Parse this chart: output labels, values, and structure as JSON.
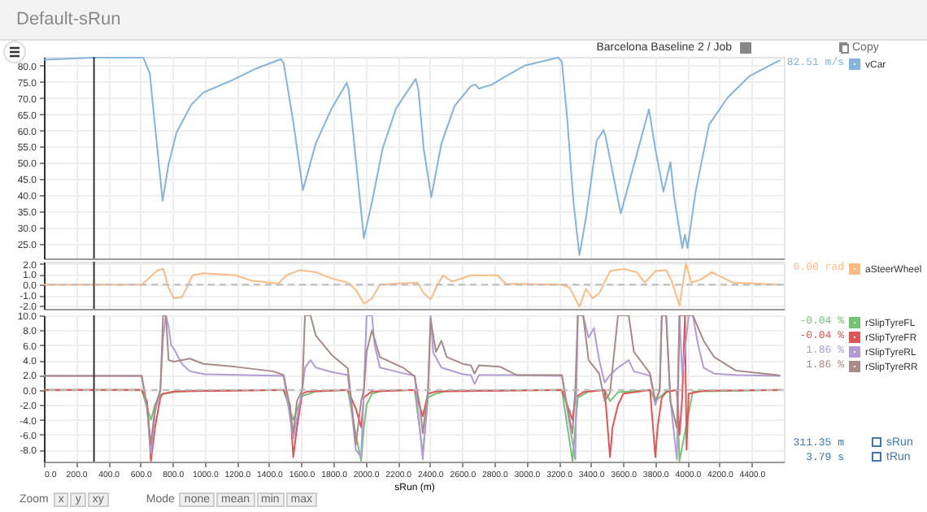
{
  "chart_data": [
    {
      "type": "line",
      "subtitle": "Default-sRun",
      "legend_title": "Barcelona Baseline 2 / Job",
      "xlim": [
        0,
        4600
      ],
      "xticks": [
        0,
        200,
        400,
        600,
        800,
        1000,
        1200,
        1400,
        1600,
        1800,
        2000,
        2200,
        2400,
        2600,
        2800,
        3000,
        3200,
        3400,
        3600,
        3800,
        4000,
        4200,
        4400
      ],
      "ylim": [
        20.5,
        82.7
      ],
      "yticks": [
        {
          "value": 25,
          "label": "25.0"
        },
        {
          "value": 30,
          "label": "30.0"
        },
        {
          "value": 35,
          "label": "35.0"
        },
        {
          "value": 40,
          "label": "40.0"
        },
        {
          "value": 45,
          "label": "45.0"
        },
        {
          "value": 50,
          "label": "50.0"
        },
        {
          "value": 55,
          "label": "55.0"
        },
        {
          "value": 60,
          "label": "60.0"
        },
        {
          "value": 65,
          "label": "65.0"
        },
        {
          "value": 70,
          "label": "70.0"
        },
        {
          "value": 75,
          "label": "75.0"
        },
        {
          "value": 80,
          "label": "80.0"
        }
      ],
      "tick_labels": "y",
      "grid": true,
      "legend": "top right",
      "ref_lines": [
        {
          "axis": "x",
          "value": 311.35,
          "color": "#333333"
        }
      ],
      "annotations": [
        "82.51 m/s",
        "Copy"
      ],
      "series": [
        {
          "name": "vCar",
          "color": "#82b4dc",
          "x": [
            0,
            325,
            618,
            658,
            698,
            738,
            774,
            824,
            917,
            991,
            1174,
            1323,
            1473,
            1490,
            1550,
            1610,
            1690,
            1789,
            1882,
            1895,
            1939,
            1989,
            2039,
            2105,
            2189,
            2311,
            2328,
            2361,
            2408,
            2471,
            2554,
            2654,
            2681,
            2704,
            2787,
            2870,
            2987,
            3197,
            3220,
            3252,
            3292,
            3329,
            3369,
            3436,
            3479,
            3492,
            3586,
            3686,
            3761,
            3801,
            3851,
            3895,
            3918,
            3968,
            3985,
            4001,
            4051,
            4135,
            4250,
            4384,
            4577
          ],
          "values": [
            81.8,
            82.5,
            82.5,
            77.6,
            57.7,
            38.3,
            49.4,
            59.3,
            68.0,
            71.7,
            75.6,
            79.2,
            82.0,
            80.9,
            62.6,
            41.6,
            56.0,
            66.8,
            74.7,
            72.6,
            51.0,
            26.8,
            37.8,
            54.3,
            66.8,
            75.9,
            72.6,
            54.3,
            39.4,
            56.0,
            67.6,
            73.7,
            74.2,
            72.9,
            74.2,
            76.7,
            80.0,
            82.5,
            81.2,
            64.3,
            37.8,
            21.5,
            32.9,
            56.8,
            60.1,
            58.0,
            34.4,
            52.7,
            66.5,
            54.3,
            41.1,
            50.2,
            39.4,
            23.7,
            27.8,
            23.7,
            41.1,
            61.8,
            70.1,
            76.7,
            81.7
          ]
        }
      ]
    },
    {
      "type": "line",
      "xlim": [
        0,
        4600
      ],
      "xticks": [
        0,
        200,
        400,
        600,
        800,
        1000,
        1200,
        1400,
        1600,
        1800,
        2000,
        2200,
        2400,
        2600,
        2800,
        3000,
        3200,
        3400,
        3600,
        3800,
        4000,
        4200,
        4400
      ],
      "ylim": [
        -2.3,
        2.2
      ],
      "yticks": [
        {
          "value": -2,
          "label": "-2.0"
        },
        {
          "value": -1,
          "label": "-1.0"
        },
        {
          "value": 0,
          "label": "0.0"
        },
        {
          "value": 1,
          "label": "1.0"
        },
        {
          "value": 2,
          "label": "2.0"
        }
      ],
      "tick_labels": "y",
      "grid": true,
      "legend": "top right",
      "ref_lines": [
        {
          "axis": "x",
          "value": 311.35,
          "color": "#333333"
        },
        {
          "axis": "y",
          "value": 0,
          "color": "#bbbbbb",
          "line_style": "dashed"
        }
      ],
      "annotations": [
        "0.00 rad"
      ],
      "series": [
        {
          "name": "aSteerWheel",
          "color": "#fdbb84",
          "x": [
            0,
            325,
            608,
            658,
            708,
            742,
            775,
            808,
            858,
            924,
            991,
            1191,
            1290,
            1457,
            1507,
            1590,
            1690,
            1789,
            1889,
            1939,
            1989,
            2039,
            2089,
            2189,
            2322,
            2361,
            2404,
            2437,
            2481,
            2537,
            2654,
            2820,
            2870,
            3220,
            3269,
            3329,
            3369,
            3412,
            3452,
            3519,
            3602,
            3685,
            3735,
            3801,
            3868,
            3901,
            3951,
            3991,
            4024,
            4084,
            4151,
            4284,
            4577
          ],
          "values": [
            0,
            0,
            0,
            0.7,
            1.4,
            1.5,
            -0.3,
            -1.3,
            -1.2,
            0.9,
            1.1,
            0.9,
            0.4,
            0.1,
            0.9,
            1.4,
            1.2,
            0.6,
            0.2,
            -0.5,
            -1.8,
            -1.3,
            0,
            0.1,
            0.2,
            -0.8,
            -1.4,
            -0.3,
            0.9,
            0.3,
            0.9,
            0.9,
            0.1,
            0,
            -0.3,
            -2.1,
            -0.4,
            -1.3,
            -0.8,
            1.3,
            1.5,
            1.2,
            0.2,
            1.3,
            1.4,
            0.4,
            -2,
            2,
            0.2,
            0.5,
            1.2,
            0.2,
            0
          ]
        }
      ]
    },
    {
      "type": "line",
      "xlabel": "sRun (m)",
      "xlim": [
        0,
        4600
      ],
      "xticks": [
        {
          "value": 0,
          "label": "0.0"
        },
        {
          "value": 200,
          "label": "200.0"
        },
        {
          "value": 400,
          "label": "400.0"
        },
        {
          "value": 600,
          "label": "600.0"
        },
        {
          "value": 800,
          "label": "800.0"
        },
        {
          "value": 1000,
          "label": "1000.0"
        },
        {
          "value": 1200,
          "label": "1200.0"
        },
        {
          "value": 1400,
          "label": "1400.0"
        },
        {
          "value": 1600,
          "label": "1600.0"
        },
        {
          "value": 1800,
          "label": "1800.0"
        },
        {
          "value": 2000,
          "label": "2000.0"
        },
        {
          "value": 2200,
          "label": "2200.0"
        },
        {
          "value": 2400,
          "label": "2400.0"
        },
        {
          "value": 2600,
          "label": "2600.0"
        },
        {
          "value": 2800,
          "label": "2800.0"
        },
        {
          "value": 3000,
          "label": "3000.0"
        },
        {
          "value": 3200,
          "label": "3200.0"
        },
        {
          "value": 3400,
          "label": "3400.0"
        },
        {
          "value": 3600,
          "label": "3600.0"
        },
        {
          "value": 3800,
          "label": "3800.0"
        },
        {
          "value": 4000,
          "label": "4000.0"
        },
        {
          "value": 4200,
          "label": "4200.0"
        },
        {
          "value": 4400,
          "label": "4400.0"
        }
      ],
      "ylim": [
        -9.6,
        10
      ],
      "yticks": [
        {
          "value": -8,
          "label": "-8.0"
        },
        {
          "value": -6,
          "label": "-6.0"
        },
        {
          "value": -4,
          "label": "-4.0"
        },
        {
          "value": -2,
          "label": "-2.0"
        },
        {
          "value": 0,
          "label": "0.0"
        },
        {
          "value": 2,
          "label": "2.0"
        },
        {
          "value": 4,
          "label": "4.0"
        },
        {
          "value": 6,
          "label": "6.0"
        },
        {
          "value": 8,
          "label": "8.0"
        },
        {
          "value": 10,
          "label": "10.0"
        }
      ],
      "grid": true,
      "legend": "top right",
      "ref_lines": [
        {
          "axis": "x",
          "value": 311.35,
          "color": "#333333"
        },
        {
          "axis": "y",
          "value": 0,
          "color": "#bbbbbb",
          "line_style": "dashed"
        }
      ],
      "annotations": [
        "-0.04 %",
        "-0.04 %",
        "1.86 %",
        "1.86 %",
        "311.35 m",
        "sRun",
        "3.79 s",
        "tRun",
        "Zoom",
        "x",
        "y",
        "xy",
        "Mode",
        "none",
        "mean",
        "min",
        "max"
      ],
      "series": [
        {
          "name": "rSlipTyreFL",
          "color": "#72c472",
          "x": [
            0,
            608,
            665,
            691,
            724,
            808,
            908,
            1490,
            1550,
            1606,
            1690,
            1889,
            1939,
            1972,
            1989,
            2006,
            2039,
            2105,
            2305,
            2355,
            2371,
            2388,
            2437,
            2504,
            3220,
            3286,
            3303,
            3319,
            3386,
            3486,
            3519,
            3569,
            3768,
            3801,
            3868,
            3935,
            3951,
            4034,
            4577
          ],
          "values": [
            0,
            0,
            -4,
            -2,
            -0.6,
            -0.3,
            -0.1,
            0,
            -4,
            -0.8,
            -0.2,
            0,
            -6,
            -9.5,
            -5,
            -2,
            -0.5,
            -0.1,
            0,
            -8.5,
            -5,
            -1,
            -0.5,
            -0.1,
            0,
            -9.5,
            -5,
            -1,
            -0.2,
            0,
            -1.5,
            -0.3,
            0,
            -1.5,
            -0.2,
            0,
            -9.5,
            -0.2,
            0
          ]
        },
        {
          "name": "rSlipTyreFR",
          "color": "#e05555",
          "x": [
            0,
            608,
            641,
            665,
            691,
            724,
            741,
            808,
            1490,
            1530,
            1550,
            1573,
            1606,
            1640,
            1889,
            1939,
            1972,
            1989,
            2039,
            2305,
            2355,
            2388,
            2437,
            3220,
            3286,
            3303,
            3352,
            3486,
            3519,
            3535,
            3569,
            3602,
            3768,
            3801,
            3815,
            3841,
            3868,
            3935,
            3951,
            3968,
            3985,
            3995,
            4008,
            4101,
            4577
          ],
          "values": [
            0,
            0,
            -1.5,
            -9.5,
            -5,
            -1,
            -0.5,
            -0.2,
            0,
            -2,
            -9,
            -5,
            -0.5,
            -0.2,
            0,
            -2.5,
            -5,
            -1,
            -0.2,
            0,
            -3.5,
            -0.5,
            -0.2,
            0,
            -4,
            -1,
            -0.3,
            0,
            -9,
            -5,
            -2,
            -0.5,
            0,
            -9,
            -5,
            -1,
            -0.3,
            0,
            -6,
            -1,
            10,
            -8,
            -0.5,
            -0.1,
            0
          ]
        },
        {
          "name": "rSlipTyreRL",
          "color": "#b39bd6",
          "x": [
            0,
            608,
            641,
            665,
            691,
            724,
            741,
            758,
            775,
            791,
            808,
            858,
            908,
            1000,
            1490,
            1550,
            1606,
            1623,
            1657,
            1690,
            1789,
            1889,
            1939,
            1972,
            1989,
            2006,
            2039,
            2056,
            2089,
            2239,
            2305,
            2355,
            2388,
            2404,
            2420,
            2471,
            2604,
            2654,
            2677,
            2704,
            2937,
            3220,
            3303,
            3319,
            3352,
            3386,
            3419,
            3452,
            3486,
            3519,
            3569,
            3635,
            3668,
            3768,
            3801,
            3828,
            3841,
            3868,
            3895,
            3935,
            3951,
            3968,
            4008,
            4034,
            4067,
            4101,
            4167,
            4300,
            4577
          ],
          "values": [
            1.9,
            1.9,
            -2.5,
            -8.5,
            -3,
            0,
            7,
            10,
            8.5,
            6,
            5.5,
            3.5,
            2.5,
            2.1,
            1.9,
            -6.5,
            0,
            3,
            4,
            3,
            2.4,
            2,
            -8,
            -9,
            0,
            10,
            10,
            6,
            3,
            2.2,
            1.9,
            -9.3,
            0,
            10,
            5,
            3,
            2.1,
            2,
            0.8,
            2,
            2,
            1.9,
            -9.3,
            10,
            10,
            7,
            8.3,
            4,
            1,
            2,
            3,
            4,
            2.5,
            1.9,
            -2,
            0,
            10,
            10,
            -1.5,
            -9.3,
            10,
            2,
            10,
            10,
            6,
            3,
            2.2,
            2,
            1.9
          ]
        },
        {
          "name": "rSlipTyreRR",
          "color": "#a88a86",
          "x": [
            0,
            608,
            641,
            665,
            691,
            724,
            741,
            758,
            775,
            808,
            908,
            991,
            1191,
            1424,
            1490,
            1523,
            1550,
            1573,
            1606,
            1623,
            1657,
            1690,
            1789,
            1889,
            1915,
            1939,
            1972,
            1989,
            2006,
            2039,
            2089,
            2239,
            2305,
            2338,
            2355,
            2388,
            2404,
            2437,
            2471,
            2504,
            2604,
            2654,
            2677,
            2704,
            2837,
            2937,
            3220,
            3253,
            3286,
            3303,
            3319,
            3352,
            3386,
            3452,
            3486,
            3519,
            3569,
            3635,
            3668,
            3768,
            3801,
            3828,
            3841,
            3868,
            3895,
            3935,
            3951,
            3968,
            4008,
            4034,
            4101,
            4167,
            4300,
            4560,
            4577
          ],
          "values": [
            1.9,
            1.9,
            -2.2,
            -7.3,
            -2.2,
            0,
            10,
            10,
            4,
            3.8,
            4.2,
            3.5,
            3.1,
            2.5,
            2,
            -1.5,
            -5.8,
            -1.5,
            0,
            10,
            10,
            7.3,
            4.7,
            2.9,
            -2.2,
            -7.3,
            -1.5,
            0,
            5.1,
            8,
            4.4,
            2.9,
            1.8,
            -2.2,
            -5.8,
            0,
            9.5,
            5.1,
            6.6,
            4.4,
            3.5,
            3.3,
            2.2,
            3.3,
            3.1,
            2,
            2,
            -2.2,
            -5.8,
            0,
            10,
            10,
            4,
            2.2,
            -1.5,
            -0.4,
            10,
            10,
            5.1,
            2.2,
            -1.5,
            0,
            10,
            10,
            -1.5,
            -5.1,
            10,
            10,
            10,
            10,
            6.6,
            4.4,
            2.6,
            2,
            1.9
          ]
        }
      ]
    }
  ]
}
